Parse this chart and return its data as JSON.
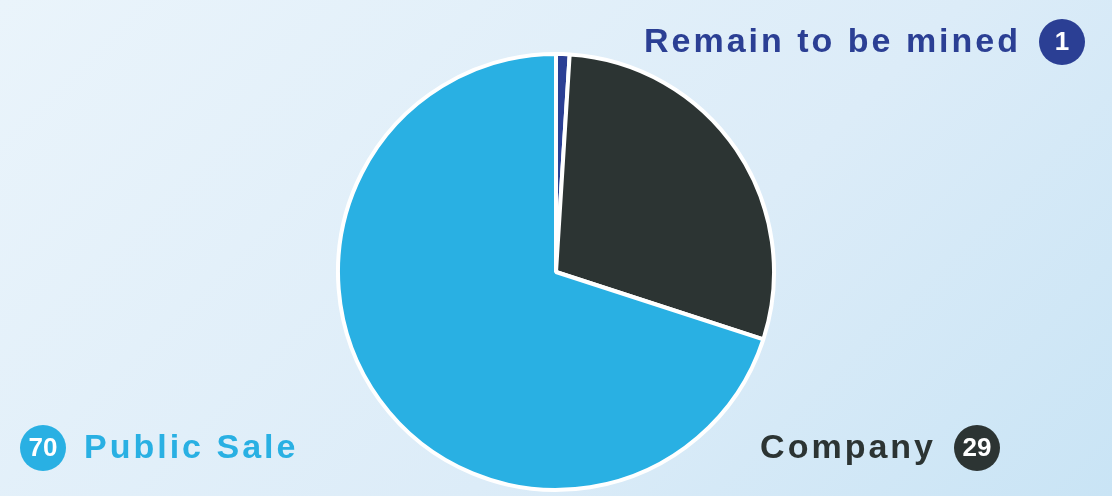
{
  "chart_data": {
    "type": "pie",
    "categories": [
      "Remain to be mined",
      "Company",
      "Public Sale"
    ],
    "values": [
      1,
      29,
      70
    ],
    "colors": [
      "#2b3f94",
      "#2c3433",
      "#29b0e3"
    ],
    "data_labels": true,
    "legend": "right"
  }
}
